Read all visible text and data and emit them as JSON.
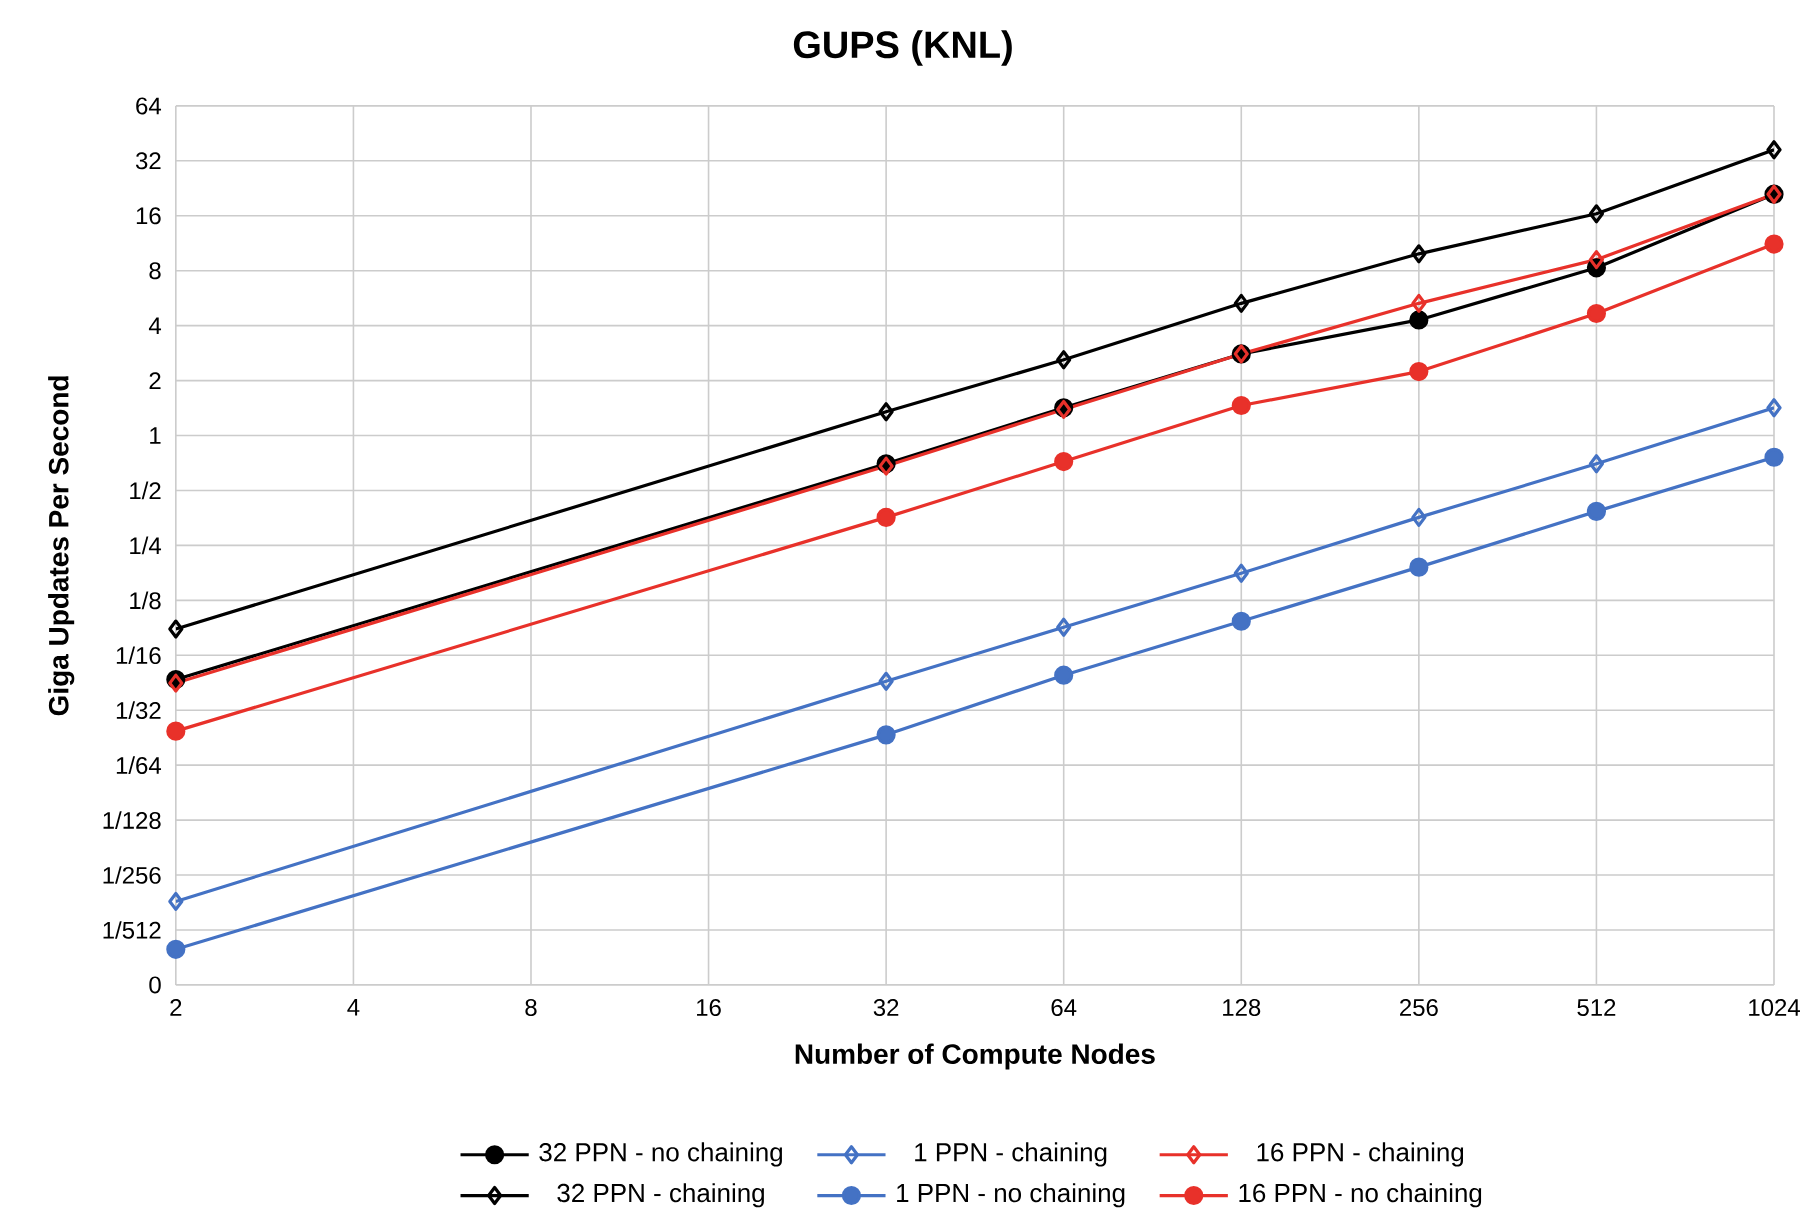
{
  "chart_data": {
    "type": "line",
    "title": "GUPS (KNL)",
    "xlabel": "Number of Compute Nodes",
    "ylabel": "Giga Updates Per Second",
    "log": "xy",
    "grid": true,
    "legend": "bottom",
    "line_style": "solid",
    "xlim": [
      2,
      1024
    ],
    "xticks": [
      2,
      4,
      8,
      16,
      32,
      64,
      128,
      256,
      512,
      1024
    ],
    "ylim": [
      0.0009765625,
      64
    ],
    "yticks": [
      {
        "value": 0.0009765625,
        "label": "0"
      },
      {
        "value": 0.001953125,
        "label": "1/512"
      },
      {
        "value": 0.00390625,
        "label": "1/256"
      },
      {
        "value": 0.0078125,
        "label": "1/128"
      },
      {
        "value": 0.015625,
        "label": "1/64"
      },
      {
        "value": 0.03125,
        "label": "1/32"
      },
      {
        "value": 0.0625,
        "label": "1/16"
      },
      {
        "value": 0.125,
        "label": "1/8"
      },
      {
        "value": 0.25,
        "label": "1/4"
      },
      {
        "value": 0.5,
        "label": "1/2"
      },
      1,
      2,
      4,
      8,
      16,
      32,
      64
    ],
    "x": [
      2,
      32,
      64,
      128,
      256,
      512,
      1024
    ],
    "series": [
      {
        "name": "32 PPN - no chaining",
        "color": "#000000",
        "marker": "circle",
        "values": [
          0.046,
          0.7,
          1.42,
          2.8,
          4.3,
          8.3,
          21
        ]
      },
      {
        "name": "1 PPN - chaining",
        "color": "#4472c4",
        "marker": "diamond",
        "values": [
          0.0028,
          0.045,
          0.089,
          0.176,
          0.356,
          0.7,
          1.42
        ]
      },
      {
        "name": "16 PPN - chaining",
        "color": "#e8312a",
        "marker": "diamond",
        "values": [
          0.044,
          0.68,
          1.39,
          2.8,
          5.3,
          9.2,
          21
        ]
      },
      {
        "name": "32 PPN - chaining",
        "color": "#000000",
        "marker": "diamond",
        "values": [
          0.087,
          1.35,
          2.6,
          5.3,
          9.9,
          16.4,
          36.8
        ]
      },
      {
        "name": "1 PPN - no chaining",
        "color": "#4472c4",
        "marker": "circle",
        "values": [
          0.00153,
          0.0229,
          0.0486,
          0.096,
          0.19,
          0.384,
          0.76
        ]
      },
      {
        "name": "16 PPN - no chaining",
        "color": "#e8312a",
        "marker": "circle",
        "values": [
          0.024,
          0.356,
          0.72,
          1.46,
          2.24,
          4.66,
          11.2
        ]
      }
    ]
  }
}
